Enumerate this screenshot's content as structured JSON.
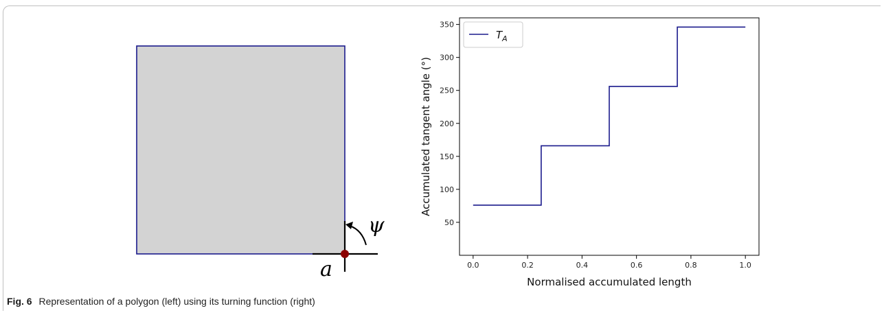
{
  "polygon_panel": {
    "vertex_label": "a",
    "angle_label": "ψ",
    "colors": {
      "fill": "#d3d3d3",
      "stroke": "#1a1a8c",
      "vertex": "#8b0000"
    }
  },
  "caption": {
    "label": "Fig. 6",
    "text": "Representation of a polygon (left) using its turning function (right)"
  },
  "chart_data": {
    "type": "line",
    "step": "post",
    "xlabel": "Normalised accumulated length",
    "ylabel": "Accumulated tangent angle (°)",
    "xlim": [
      -0.05,
      1.05
    ],
    "ylim": [
      0,
      360
    ],
    "xticks": [
      "0.0",
      "0.2",
      "0.4",
      "0.6",
      "0.8",
      "1.0"
    ],
    "yticks": [
      "50",
      "100",
      "150",
      "200",
      "250",
      "300",
      "350"
    ],
    "legend": {
      "placement": "top-left",
      "entries": [
        "T_A"
      ]
    },
    "grid": false,
    "series": [
      {
        "name": "T_A",
        "color": "#1a1a8c",
        "x": [
          0.0,
          0.25,
          0.5,
          0.75,
          1.0
        ],
        "y": [
          76,
          166,
          256,
          346,
          346
        ]
      }
    ]
  }
}
